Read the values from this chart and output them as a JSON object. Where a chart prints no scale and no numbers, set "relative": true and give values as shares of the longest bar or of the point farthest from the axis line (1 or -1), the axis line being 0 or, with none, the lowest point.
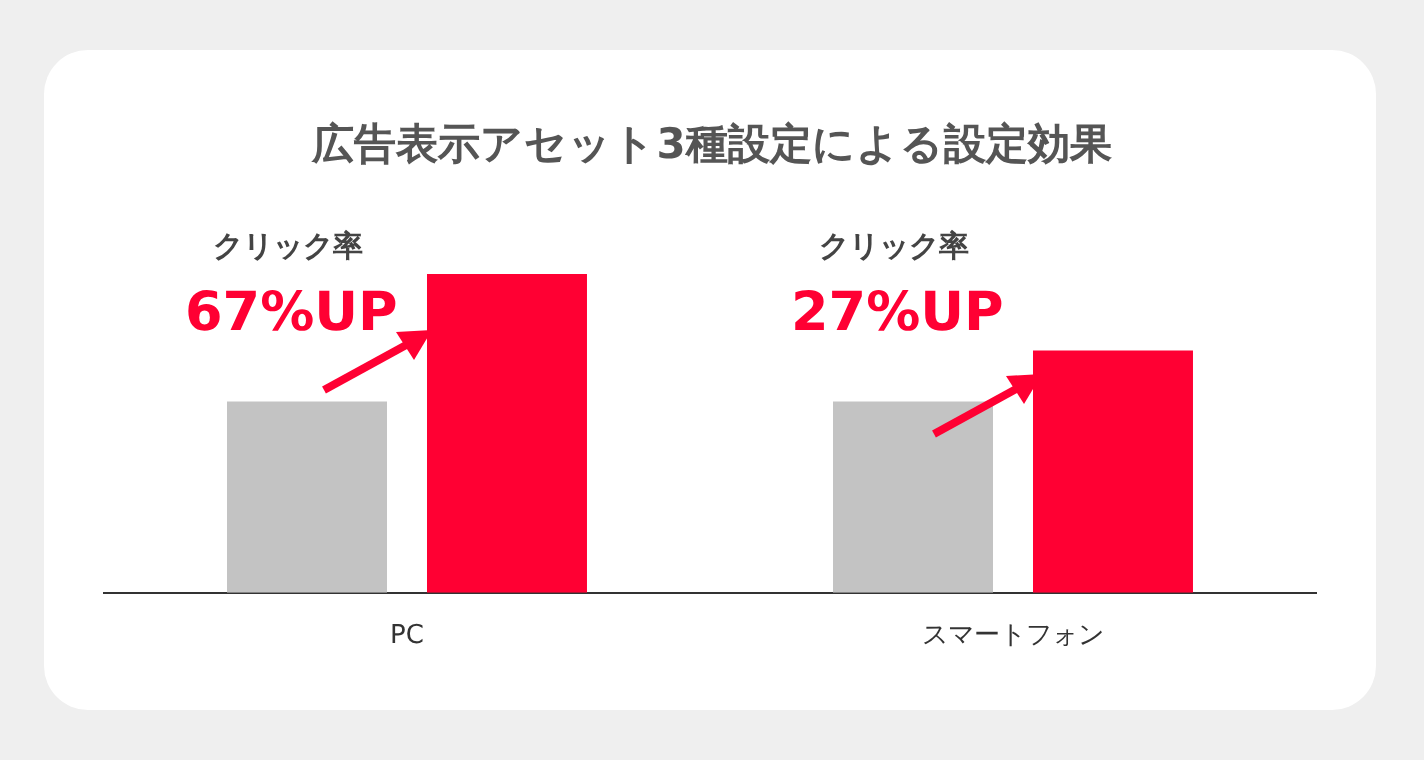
{
  "chart_data": {
    "type": "bar",
    "title": "広告表示アセット3種設定による設定効果",
    "categories": [
      "PC",
      "スマートフォン"
    ],
    "relative": true,
    "series": [
      {
        "color": "#c3c3c3",
        "values": [
          0.6,
          0.6
        ]
      },
      {
        "color": "#ff0033",
        "values": [
          1,
          0.76
        ]
      }
    ],
    "annotations": [
      "クリック率",
      "67%UP",
      "クリック率",
      "27%UP"
    ],
    "grid": false,
    "legend": false
  }
}
